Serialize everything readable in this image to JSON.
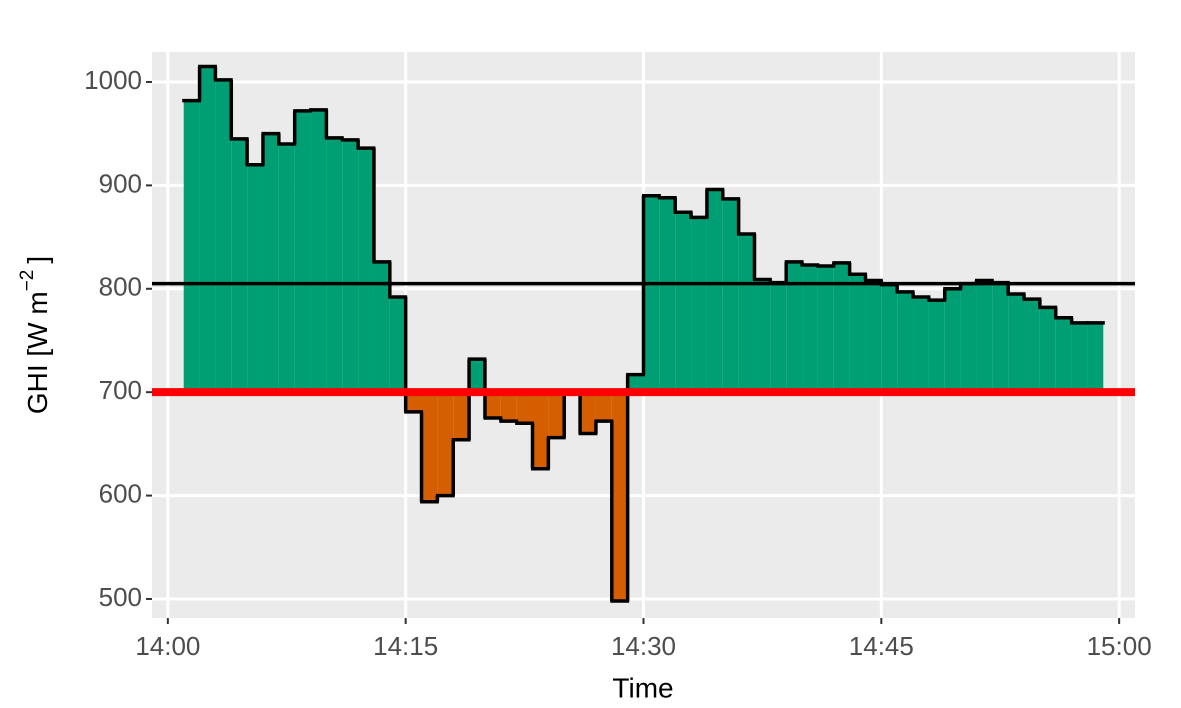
{
  "chart_data": {
    "type": "step-area",
    "xlabel": "Time",
    "ylabel": [
      "GHI [W m",
      "−2",
      "]"
    ],
    "x": [
      1,
      2,
      3,
      4,
      5,
      6,
      7,
      8,
      9,
      10,
      11,
      12,
      13,
      14,
      15,
      16,
      17,
      18,
      19,
      20,
      21,
      22,
      23,
      24,
      25,
      26,
      27,
      28,
      29,
      30,
      31,
      32,
      33,
      34,
      35,
      36,
      37,
      38,
      39,
      40,
      41,
      42,
      43,
      44,
      45,
      46,
      47,
      48,
      49,
      50,
      51,
      52,
      53,
      54,
      55,
      56,
      57,
      58
    ],
    "values": [
      982,
      1015,
      1002,
      945,
      920,
      950,
      940,
      972,
      973,
      946,
      944,
      936,
      826,
      792,
      681,
      594,
      600,
      654,
      732,
      675,
      672,
      670,
      626,
      656,
      700,
      660,
      672,
      498,
      717,
      890,
      888,
      874,
      869,
      896,
      887,
      853,
      809,
      806,
      826,
      823,
      822,
      825,
      814,
      808,
      804,
      797,
      792,
      789,
      800,
      805,
      808,
      806,
      795,
      790,
      782,
      772,
      767,
      767
    ],
    "colors": {
      "above": "#009E73",
      "below": "#D55E00",
      "outline": "#000000"
    },
    "hlines": [
      {
        "value": 700,
        "color": "#FF0000"
      },
      {
        "value": 805,
        "color": "#000000"
      }
    ],
    "xlim": [
      -1,
      61
    ],
    "ylim": [
      481.6,
      1029
    ],
    "xticks": [
      {
        "value": 0,
        "label": "14:00"
      },
      {
        "value": 15,
        "label": "14:15"
      },
      {
        "value": 30,
        "label": "14:30"
      },
      {
        "value": 45,
        "label": "14:45"
      },
      {
        "value": 60,
        "label": "15:00"
      }
    ],
    "yticks": [
      500,
      600,
      700,
      800,
      900,
      1000
    ],
    "grid": true
  }
}
